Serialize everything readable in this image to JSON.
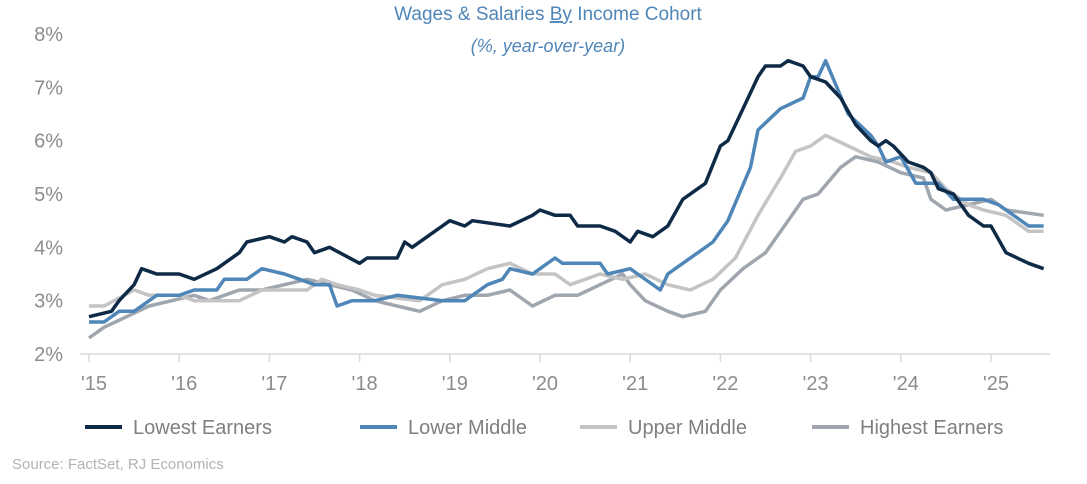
{
  "chart_data": {
    "type": "line",
    "title_part1": "Wages & Salaries ",
    "title_underlined": "By",
    "title_part2": " Income Cohort",
    "subtitle": "(%, year-over-year)",
    "xlabel": "",
    "ylabel": "",
    "ylim": [
      2,
      8
    ],
    "xlim": [
      "2015-01",
      "2025-08"
    ],
    "y_ticks": [
      "2%",
      "3%",
      "4%",
      "5%",
      "6%",
      "7%",
      "8%"
    ],
    "x_ticks": [
      "'15",
      "'16",
      "'17",
      "'18",
      "'19",
      "'20",
      "'21",
      "'22",
      "'23",
      "'24",
      "'25"
    ],
    "grid": false,
    "legend_position": "bottom",
    "source": "Source: FactSet, RJ Economics",
    "series": [
      {
        "name": "Lowest Earners",
        "color": "#0E2A47",
        "points": [
          [
            "2015-01",
            2.7
          ],
          [
            "2015-04",
            2.8
          ],
          [
            "2015-05",
            3.0
          ],
          [
            "2015-07",
            3.3
          ],
          [
            "2015-08",
            3.6
          ],
          [
            "2015-10",
            3.5
          ],
          [
            "2016-01",
            3.5
          ],
          [
            "2016-03",
            3.4
          ],
          [
            "2016-06",
            3.6
          ],
          [
            "2016-09",
            3.9
          ],
          [
            "2016-10",
            4.1
          ],
          [
            "2017-01",
            4.2
          ],
          [
            "2017-03",
            4.1
          ],
          [
            "2017-04",
            4.2
          ],
          [
            "2017-06",
            4.1
          ],
          [
            "2017-07",
            3.9
          ],
          [
            "2017-09",
            4.0
          ],
          [
            "2018-01",
            3.7
          ],
          [
            "2018-02",
            3.8
          ],
          [
            "2018-06",
            3.8
          ],
          [
            "2018-07",
            4.1
          ],
          [
            "2018-08",
            4.0
          ],
          [
            "2019-01",
            4.5
          ],
          [
            "2019-03",
            4.4
          ],
          [
            "2019-04",
            4.5
          ],
          [
            "2019-09",
            4.4
          ],
          [
            "2019-12",
            4.6
          ],
          [
            "2020-01",
            4.7
          ],
          [
            "2020-03",
            4.6
          ],
          [
            "2020-05",
            4.6
          ],
          [
            "2020-06",
            4.4
          ],
          [
            "2020-09",
            4.4
          ],
          [
            "2020-11",
            4.3
          ],
          [
            "2021-01",
            4.1
          ],
          [
            "2021-02",
            4.3
          ],
          [
            "2021-04",
            4.2
          ],
          [
            "2021-06",
            4.4
          ],
          [
            "2021-08",
            4.9
          ],
          [
            "2021-11",
            5.2
          ],
          [
            "2022-01",
            5.9
          ],
          [
            "2022-02",
            6.0
          ],
          [
            "2022-04",
            6.6
          ],
          [
            "2022-06",
            7.2
          ],
          [
            "2022-07",
            7.4
          ],
          [
            "2022-09",
            7.4
          ],
          [
            "2022-10",
            7.5
          ],
          [
            "2022-12",
            7.4
          ],
          [
            "2023-01",
            7.2
          ],
          [
            "2023-03",
            7.1
          ],
          [
            "2023-05",
            6.8
          ],
          [
            "2023-07",
            6.3
          ],
          [
            "2023-09",
            6.0
          ],
          [
            "2023-10",
            5.9
          ],
          [
            "2023-11",
            6.0
          ],
          [
            "2023-12",
            5.9
          ],
          [
            "2024-02",
            5.6
          ],
          [
            "2024-04",
            5.5
          ],
          [
            "2024-05",
            5.4
          ],
          [
            "2024-06",
            5.1
          ],
          [
            "2024-08",
            5.0
          ],
          [
            "2024-10",
            4.6
          ],
          [
            "2024-12",
            4.4
          ],
          [
            "2025-01",
            4.4
          ],
          [
            "2025-03",
            3.9
          ],
          [
            "2025-06",
            3.7
          ],
          [
            "2025-08",
            3.6
          ]
        ]
      },
      {
        "name": "Lower Middle",
        "color": "#4F86B8",
        "points": [
          [
            "2015-01",
            2.6
          ],
          [
            "2015-03",
            2.6
          ],
          [
            "2015-05",
            2.8
          ],
          [
            "2015-07",
            2.8
          ],
          [
            "2015-10",
            3.1
          ],
          [
            "2016-01",
            3.1
          ],
          [
            "2016-03",
            3.2
          ],
          [
            "2016-06",
            3.2
          ],
          [
            "2016-07",
            3.4
          ],
          [
            "2016-10",
            3.4
          ],
          [
            "2016-12",
            3.6
          ],
          [
            "2017-03",
            3.5
          ],
          [
            "2017-05",
            3.4
          ],
          [
            "2017-07",
            3.3
          ],
          [
            "2017-09",
            3.3
          ],
          [
            "2017-10",
            2.9
          ],
          [
            "2017-12",
            3.0
          ],
          [
            "2018-03",
            3.0
          ],
          [
            "2018-06",
            3.1
          ],
          [
            "2018-12",
            3.0
          ],
          [
            "2019-03",
            3.0
          ],
          [
            "2019-06",
            3.3
          ],
          [
            "2019-08",
            3.4
          ],
          [
            "2019-09",
            3.6
          ],
          [
            "2019-12",
            3.5
          ],
          [
            "2020-01",
            3.6
          ],
          [
            "2020-03",
            3.8
          ],
          [
            "2020-04",
            3.7
          ],
          [
            "2020-09",
            3.7
          ],
          [
            "2020-10",
            3.5
          ],
          [
            "2021-01",
            3.6
          ],
          [
            "2021-02",
            3.5
          ],
          [
            "2021-05",
            3.2
          ],
          [
            "2021-06",
            3.5
          ],
          [
            "2021-08",
            3.7
          ],
          [
            "2021-10",
            3.9
          ],
          [
            "2021-12",
            4.1
          ],
          [
            "2022-02",
            4.5
          ],
          [
            "2022-05",
            5.5
          ],
          [
            "2022-06",
            6.2
          ],
          [
            "2022-09",
            6.6
          ],
          [
            "2022-12",
            6.8
          ],
          [
            "2023-01",
            7.2
          ],
          [
            "2023-02",
            7.2
          ],
          [
            "2023-03",
            7.5
          ],
          [
            "2023-06",
            6.5
          ],
          [
            "2023-09",
            6.1
          ],
          [
            "2023-10",
            5.9
          ],
          [
            "2023-11",
            5.6
          ],
          [
            "2024-01",
            5.7
          ],
          [
            "2024-03",
            5.2
          ],
          [
            "2024-06",
            5.2
          ],
          [
            "2024-08",
            4.9
          ],
          [
            "2024-12",
            4.9
          ],
          [
            "2025-02",
            4.8
          ],
          [
            "2025-04",
            4.6
          ],
          [
            "2025-06",
            4.4
          ],
          [
            "2025-08",
            4.4
          ]
        ]
      },
      {
        "name": "Upper Middle",
        "color": "#C4C4C4",
        "points": [
          [
            "2015-01",
            2.9
          ],
          [
            "2015-03",
            2.9
          ],
          [
            "2015-07",
            3.2
          ],
          [
            "2015-09",
            3.1
          ],
          [
            "2016-01",
            3.1
          ],
          [
            "2016-03",
            3.0
          ],
          [
            "2016-09",
            3.0
          ],
          [
            "2016-12",
            3.2
          ],
          [
            "2017-06",
            3.2
          ],
          [
            "2017-08",
            3.4
          ],
          [
            "2017-10",
            3.3
          ],
          [
            "2018-01",
            3.2
          ],
          [
            "2018-03",
            3.1
          ],
          [
            "2018-09",
            3.0
          ],
          [
            "2018-12",
            3.3
          ],
          [
            "2019-03",
            3.4
          ],
          [
            "2019-06",
            3.6
          ],
          [
            "2019-09",
            3.7
          ],
          [
            "2019-12",
            3.5
          ],
          [
            "2020-03",
            3.5
          ],
          [
            "2020-05",
            3.3
          ],
          [
            "2020-09",
            3.5
          ],
          [
            "2020-12",
            3.4
          ],
          [
            "2021-03",
            3.5
          ],
          [
            "2021-06",
            3.3
          ],
          [
            "2021-09",
            3.2
          ],
          [
            "2021-12",
            3.4
          ],
          [
            "2022-03",
            3.8
          ],
          [
            "2022-06",
            4.6
          ],
          [
            "2022-09",
            5.3
          ],
          [
            "2022-11",
            5.8
          ],
          [
            "2023-01",
            5.9
          ],
          [
            "2023-03",
            6.1
          ],
          [
            "2023-06",
            5.9
          ],
          [
            "2023-09",
            5.7
          ],
          [
            "2023-12",
            5.6
          ],
          [
            "2024-02",
            5.5
          ],
          [
            "2024-05",
            5.4
          ],
          [
            "2024-07",
            5.1
          ],
          [
            "2024-10",
            4.8
          ],
          [
            "2024-12",
            4.7
          ],
          [
            "2025-03",
            4.6
          ],
          [
            "2025-06",
            4.3
          ],
          [
            "2025-08",
            4.3
          ]
        ]
      },
      {
        "name": "Highest Earners",
        "color": "#A0A6AE",
        "points": [
          [
            "2015-01",
            2.3
          ],
          [
            "2015-03",
            2.5
          ],
          [
            "2015-06",
            2.7
          ],
          [
            "2015-09",
            2.9
          ],
          [
            "2015-12",
            3.0
          ],
          [
            "2016-03",
            3.1
          ],
          [
            "2016-05",
            3.0
          ],
          [
            "2016-09",
            3.2
          ],
          [
            "2016-12",
            3.2
          ],
          [
            "2017-03",
            3.3
          ],
          [
            "2017-06",
            3.4
          ],
          [
            "2017-09",
            3.3
          ],
          [
            "2017-12",
            3.2
          ],
          [
            "2018-03",
            3.0
          ],
          [
            "2018-09",
            2.8
          ],
          [
            "2018-12",
            3.0
          ],
          [
            "2019-03",
            3.1
          ],
          [
            "2019-06",
            3.1
          ],
          [
            "2019-09",
            3.2
          ],
          [
            "2019-12",
            2.9
          ],
          [
            "2020-03",
            3.1
          ],
          [
            "2020-06",
            3.1
          ],
          [
            "2020-09",
            3.3
          ],
          [
            "2020-12",
            3.5
          ],
          [
            "2021-01",
            3.3
          ],
          [
            "2021-03",
            3.0
          ],
          [
            "2021-06",
            2.8
          ],
          [
            "2021-08",
            2.7
          ],
          [
            "2021-11",
            2.8
          ],
          [
            "2022-01",
            3.2
          ],
          [
            "2022-04",
            3.6
          ],
          [
            "2022-07",
            3.9
          ],
          [
            "2022-10",
            4.5
          ],
          [
            "2022-12",
            4.9
          ],
          [
            "2023-02",
            5.0
          ],
          [
            "2023-05",
            5.5
          ],
          [
            "2023-07",
            5.7
          ],
          [
            "2023-10",
            5.6
          ],
          [
            "2024-01",
            5.4
          ],
          [
            "2024-04",
            5.3
          ],
          [
            "2024-05",
            4.9
          ],
          [
            "2024-07",
            4.7
          ],
          [
            "2024-10",
            4.8
          ],
          [
            "2025-01",
            4.9
          ],
          [
            "2025-03",
            4.7
          ],
          [
            "2025-08",
            4.6
          ]
        ]
      }
    ]
  }
}
